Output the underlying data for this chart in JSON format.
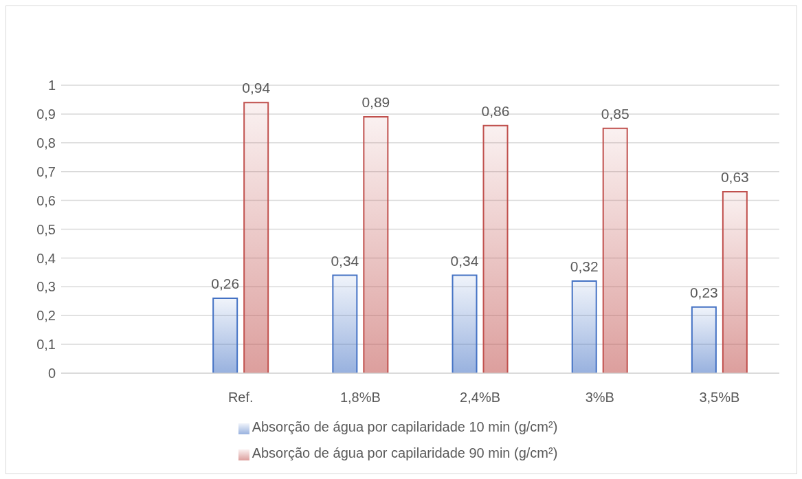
{
  "chart_data": {
    "type": "bar",
    "categories": [
      null,
      "Ref.",
      "1,8%B",
      "2,4%B",
      "3%B",
      "3,5%B"
    ],
    "series": [
      {
        "name": "Absorção de água por capilaridade  10 min (g/cm²)",
        "color": "#4472c4",
        "values": [
          null,
          0.26,
          0.34,
          0.34,
          0.32,
          0.23
        ],
        "value_labels": [
          null,
          "0,26",
          "0,34",
          "0,34",
          "0,32",
          "0,23"
        ]
      },
      {
        "name": "Absorção de água por capilaridade 90 min (g/cm²)",
        "color": "#c0504d",
        "values": [
          null,
          0.94,
          0.89,
          0.86,
          0.85,
          0.63
        ],
        "value_labels": [
          null,
          "0,94",
          "0,89",
          "0,86",
          "0,85",
          "0,63"
        ]
      }
    ],
    "ylim": [
      0,
      1
    ],
    "yticks": [
      0,
      {
        "value": 0.1,
        "label": "0,1"
      },
      {
        "value": 0.2,
        "label": "0,2"
      },
      {
        "value": 0.3,
        "label": "0,3"
      },
      {
        "value": 0.4,
        "label": "0,4"
      },
      {
        "value": 0.5,
        "label": "0,5"
      },
      {
        "value": 0.6,
        "label": "0,6"
      },
      {
        "value": 0.7,
        "label": "0,7"
      },
      {
        "value": 0.8,
        "label": "0,8"
      },
      {
        "value": 0.9,
        "label": "0,9"
      },
      1
    ],
    "grid": "y",
    "legend": "bottom"
  }
}
